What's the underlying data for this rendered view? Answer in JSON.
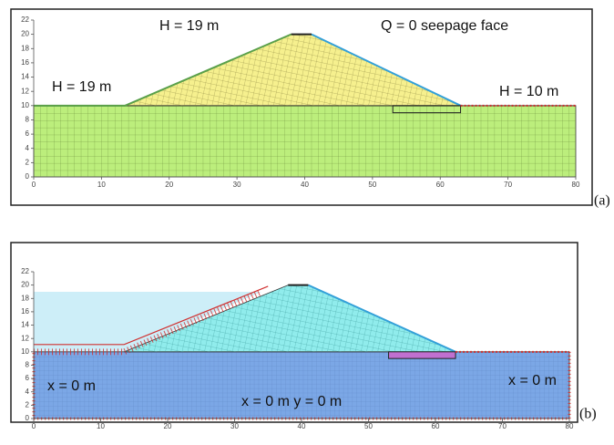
{
  "panels": [
    {
      "label": "(a)",
      "xlim": [
        0,
        80
      ],
      "ylim": [
        0,
        22
      ],
      "xticks": [
        0,
        10,
        20,
        30,
        40,
        50,
        60,
        70,
        80
      ],
      "yticks": [
        0,
        2,
        4,
        6,
        8,
        10,
        12,
        14,
        16,
        18,
        20,
        22
      ],
      "annotations": [
        "H = 19 m",
        "H = 19 m",
        "Q = 0 seepage face",
        "H = 10 m"
      ]
    },
    {
      "label": "(b)",
      "xlim": [
        0,
        80
      ],
      "ylim": [
        0,
        22
      ],
      "xticks": [
        0,
        10,
        20,
        30,
        40,
        50,
        60,
        70,
        80
      ],
      "yticks": [
        0,
        2,
        4,
        6,
        8,
        10,
        12,
        14,
        16,
        18,
        20,
        22
      ],
      "annotations": [
        "x = 0 m",
        "x = 0 m  y = 0 m",
        "x = 0 m"
      ]
    }
  ]
}
